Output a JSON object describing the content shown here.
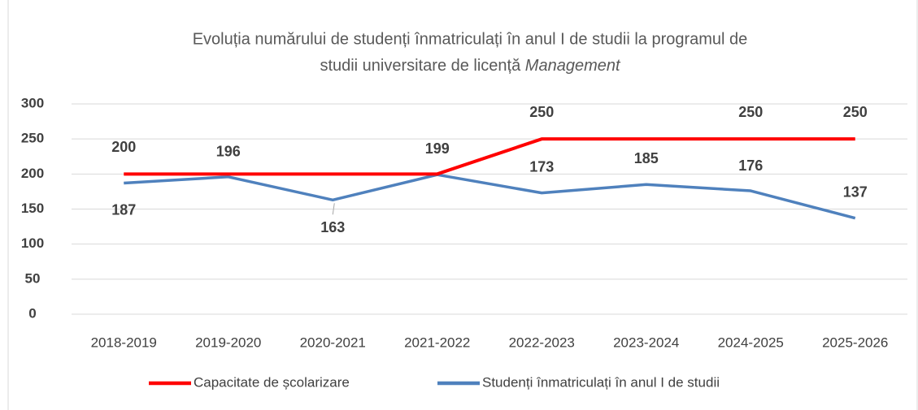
{
  "chart_data": {
    "type": "line",
    "title": [
      "Evoluția numărului de studenți înmatriculați în anul I de studii la programul de",
      "studii universitare de licență"
    ],
    "title_emphasis": "Management",
    "categories": [
      "2018-2019",
      "2019-2020",
      "2020-2021",
      "2021-2022",
      "2022-2023",
      "2023-2024",
      "2024-2025",
      "2025-2026"
    ],
    "series": [
      {
        "name": "Capacitate de școlarizare",
        "color": "#ff0000",
        "values": [
          200,
          200,
          200,
          200,
          250,
          250,
          250,
          250
        ],
        "value_labels": [
          "200",
          null,
          null,
          null,
          "250",
          null,
          "250",
          "250"
        ]
      },
      {
        "name": "Studenți înmatriculați în anul I de studii",
        "color": "#4f81bd",
        "values": [
          187,
          196,
          163,
          199,
          173,
          185,
          176,
          137
        ]
      }
    ],
    "ylim": [
      0,
      300
    ],
    "yticks": [
      0,
      50,
      100,
      150,
      200,
      250,
      300
    ],
    "grid": true,
    "legend": "bottom"
  }
}
